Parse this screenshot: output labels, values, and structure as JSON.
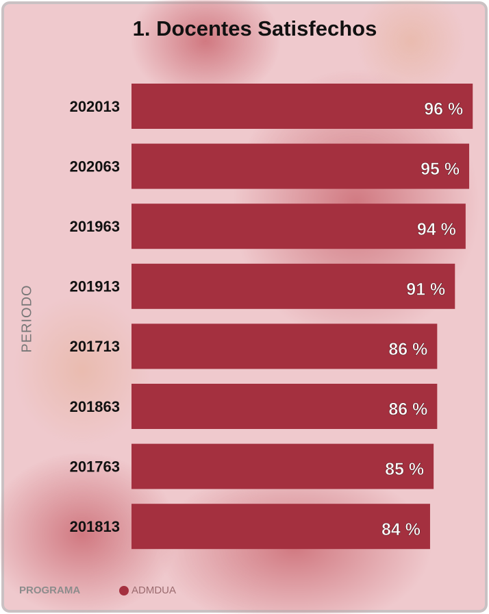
{
  "chart_data": {
    "type": "bar",
    "orientation": "horizontal",
    "title": "1. Docentes Satisfechos",
    "y_label": "PERIODO",
    "categories": [
      "202013",
      "202063",
      "201963",
      "201913",
      "201713",
      "201863",
      "201763",
      "201813"
    ],
    "series": [
      {
        "name": "ADMDUA",
        "color": "#a4303f",
        "values": [
          96,
          95,
          94,
          91,
          86,
          86,
          85,
          84
        ],
        "value_labels": [
          "96 %",
          "95 %",
          "94 %",
          "91 %",
          "86 %",
          "86 %",
          "85 %",
          "84 %"
        ]
      }
    ],
    "legend_title": "PROGRAMA",
    "legend": "bottom-left"
  }
}
